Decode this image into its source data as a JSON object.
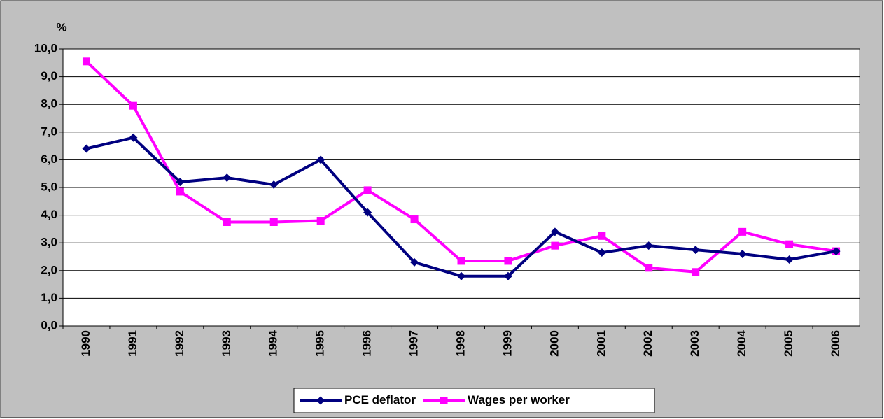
{
  "chart_data": {
    "type": "line",
    "y_label": "%",
    "categories": [
      "1990",
      "1991",
      "1992",
      "1993",
      "1994",
      "1995",
      "1996",
      "1997",
      "1998",
      "1999",
      "2000",
      "2001",
      "2002",
      "2003",
      "2004",
      "2005",
      "2006"
    ],
    "series": [
      {
        "name": "PCE deflator",
        "color": "#000080",
        "marker": "diamond",
        "values": [
          6.4,
          6.8,
          5.2,
          5.35,
          5.1,
          6.0,
          4.1,
          2.3,
          1.8,
          1.8,
          3.4,
          2.65,
          2.9,
          2.75,
          2.6,
          2.4,
          2.7
        ]
      },
      {
        "name": "Wages per worker",
        "color": "#ff00ff",
        "marker": "square",
        "values": [
          9.55,
          7.95,
          4.85,
          3.75,
          3.75,
          3.8,
          4.9,
          3.85,
          2.35,
          2.35,
          2.9,
          3.25,
          2.1,
          1.95,
          3.4,
          2.95,
          2.7
        ]
      }
    ],
    "ylim": [
      0,
      10
    ],
    "yticks": [
      {
        "value": 0,
        "label": "0,0"
      },
      {
        "value": 1,
        "label": "1,0"
      },
      {
        "value": 2,
        "label": "2,0"
      },
      {
        "value": 3,
        "label": "3,0"
      },
      {
        "value": 4,
        "label": "4,0"
      },
      {
        "value": 5,
        "label": "5,0"
      },
      {
        "value": 6,
        "label": "6,0"
      },
      {
        "value": 7,
        "label": "7,0"
      },
      {
        "value": 8,
        "label": "8,0"
      },
      {
        "value": 9,
        "label": "9,0"
      },
      {
        "value": 10,
        "label": "10,0"
      }
    ],
    "grid": true,
    "legend": "bottom"
  }
}
